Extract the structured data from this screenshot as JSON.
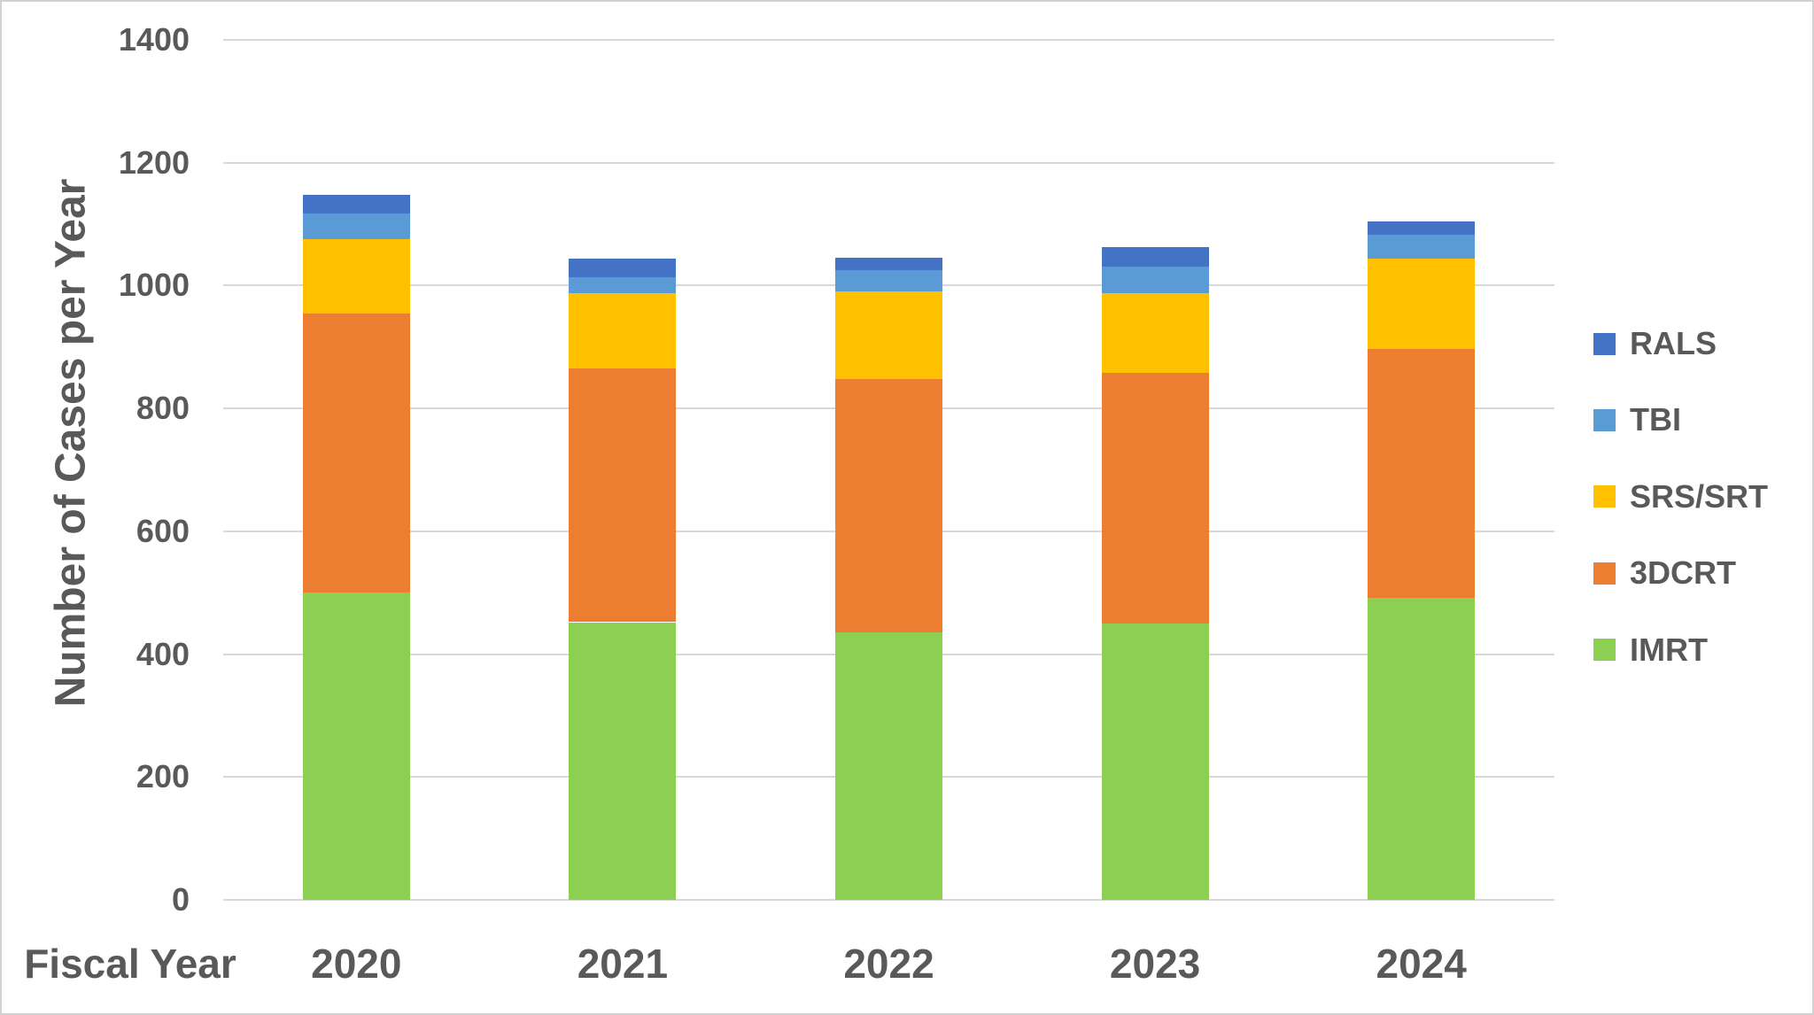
{
  "chart_data": {
    "type": "bar",
    "stacked": true,
    "xlabel": "Fiscal Year",
    "ylabel": "Number of Cases per Year",
    "categories": [
      "2020",
      "2021",
      "2022",
      "2023",
      "2024"
    ],
    "series": [
      {
        "name": "IMRT",
        "color": "#8DCF53",
        "values": [
          500,
          452,
          435,
          450,
          492
        ]
      },
      {
        "name": "3DCRT",
        "color": "#ED7D31",
        "values": [
          455,
          413,
          413,
          408,
          405
        ]
      },
      {
        "name": "SRS/SRT",
        "color": "#FFC000",
        "values": [
          120,
          122,
          142,
          130,
          147
        ]
      },
      {
        "name": "TBI",
        "color": "#5B9BD5",
        "values": [
          43,
          26,
          35,
          43,
          39
        ]
      },
      {
        "name": "RALS",
        "color": "#4472C4",
        "values": [
          30,
          31,
          21,
          32,
          21
        ]
      }
    ],
    "totals": [
      1148,
      1044,
      1046,
      1063,
      1104
    ],
    "legend": {
      "position": "right",
      "order": [
        "RALS",
        "TBI",
        "SRS/SRT",
        "3DCRT",
        "IMRT"
      ]
    },
    "y_axis": {
      "min": 0,
      "max": 1400,
      "step": 200,
      "ticks": [
        0,
        200,
        400,
        600,
        800,
        1000,
        1200,
        1400
      ]
    },
    "grid": true
  },
  "style": {
    "text_color": "#595959",
    "grid_color": "#d9d9d9",
    "border_color": "#d2d2d2",
    "background": "#ffffff"
  }
}
